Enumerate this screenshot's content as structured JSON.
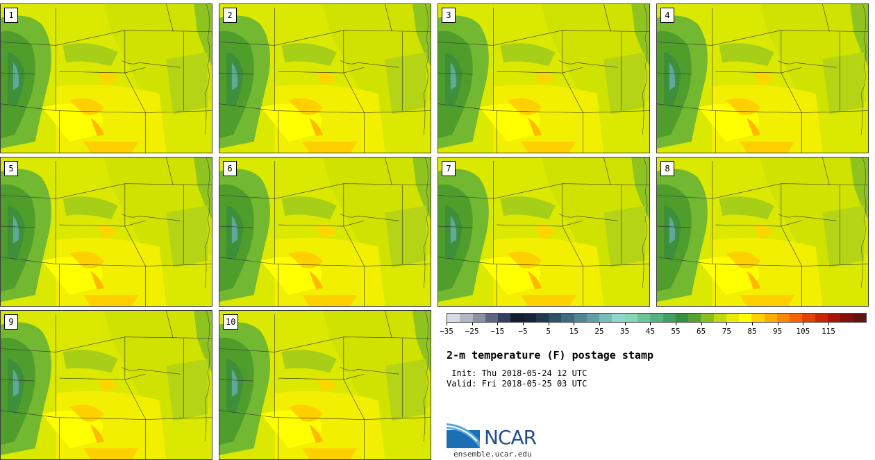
{
  "title": "2-m temperature (F) postage stamp",
  "init_text": " Init: Thu 2018-05-24 12 UTC",
  "valid_text": "Valid: Fri 2018-05-25 03 UTC",
  "panels": [
    "1",
    "2",
    "3",
    "4",
    "5",
    "6",
    "7",
    "8",
    "9",
    "10"
  ],
  "colorbar": {
    "colors": [
      "#d7dbe3",
      "#b3b8c6",
      "#8b92a6",
      "#5f6780",
      "#353e5c",
      "#141b33",
      "#162238",
      "#223a4f",
      "#2f5166",
      "#3e6a7d",
      "#4f8594",
      "#62a0a9",
      "#78bcbc",
      "#8fd6d0",
      "#86d5b4",
      "#6cc598",
      "#56b37f",
      "#43a062",
      "#388f3f",
      "#55a232",
      "#8bbd20",
      "#c1d70f",
      "#eaeb07",
      "#ffff00",
      "#ffd200",
      "#ffac00",
      "#fd8700",
      "#f56400",
      "#e44200",
      "#c92700",
      "#a81706",
      "#851009",
      "#62140e"
    ],
    "ticks": [
      "−35",
      "−25",
      "−15",
      "−5",
      "5",
      "15",
      "25",
      "35",
      "45",
      "55",
      "65",
      "75",
      "85",
      "95",
      "105",
      "115"
    ]
  },
  "logo": {
    "text": "NCAR",
    "url": "ensemble.ucar.edu"
  }
}
